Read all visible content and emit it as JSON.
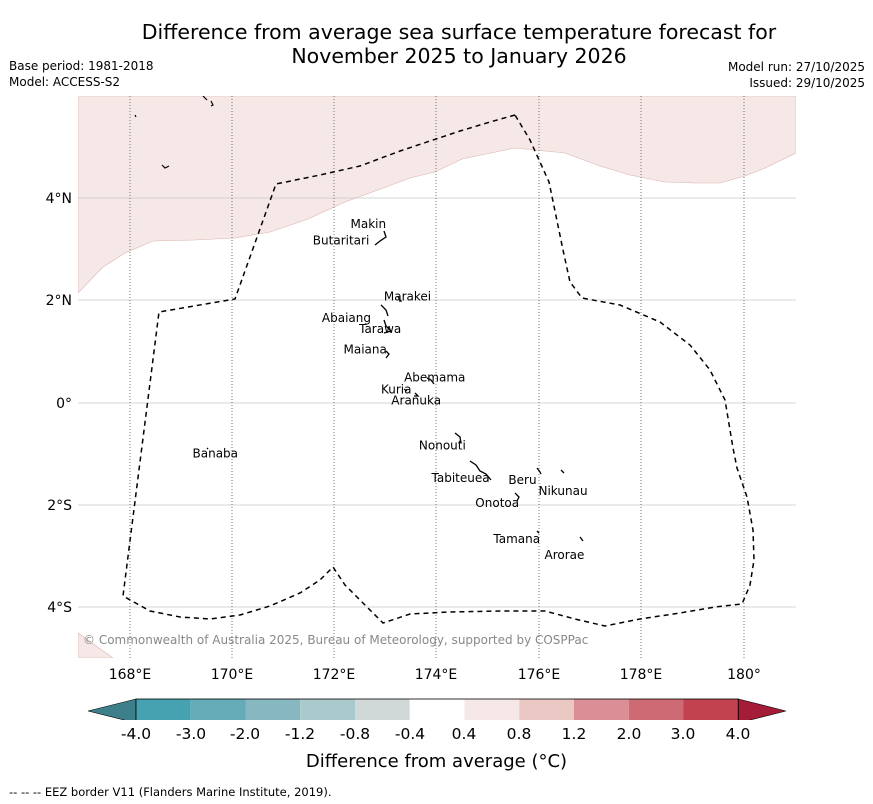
{
  "title": {
    "line1": "Difference from average sea surface temperature forecast for",
    "line2": "November 2025 to January 2026"
  },
  "meta": {
    "base_period": "Base period: 1981-2018",
    "model": "Model: ACCESS-S2",
    "model_run": "Model run: 27/10/2025",
    "issued": "Issued: 29/10/2025"
  },
  "map": {
    "lon_labels": [
      "168°E",
      "170°E",
      "172°E",
      "174°E",
      "176°E",
      "178°E",
      "180°"
    ],
    "lat_labels": [
      "4°N",
      "2°N",
      "0°",
      "2°S",
      "4°S"
    ],
    "copyright": "© Commonwealth of Australia 2025, Bureau of Meteorology, supported by COSPPac",
    "islands": [
      {
        "name": "Makin",
        "lon": 172.98,
        "lat": 3.3
      },
      {
        "name": "Butaritari",
        "lon": 172.85,
        "lat": 3.05
      },
      {
        "name": "Marakei",
        "lon": 173.3,
        "lat": 2.0
      },
      {
        "name": "Abaiang",
        "lon": 172.95,
        "lat": 1.8
      },
      {
        "name": "Tarawa",
        "lon": 173.05,
        "lat": 1.35
      },
      {
        "name": "Maiana",
        "lon": 173.0,
        "lat": 0.95
      },
      {
        "name": "Abemama",
        "lon": 173.85,
        "lat": 0.4
      },
      {
        "name": "Kuria",
        "lon": 173.4,
        "lat": 0.22
      },
      {
        "name": "Aranuka",
        "lon": 173.6,
        "lat": 0.17
      },
      {
        "name": "Nonouti",
        "lon": 174.45,
        "lat": -0.65
      },
      {
        "name": "Banaba",
        "lon": 169.53,
        "lat": -0.87
      },
      {
        "name": "Tabiteuea",
        "lon": 174.95,
        "lat": -1.35
      },
      {
        "name": "Beru",
        "lon": 176.0,
        "lat": -1.35
      },
      {
        "name": "Nikunau",
        "lon": 176.45,
        "lat": -1.35
      },
      {
        "name": "Onotoa",
        "lon": 175.55,
        "lat": -1.85
      },
      {
        "name": "Tamana",
        "lon": 175.98,
        "lat": -2.5
      },
      {
        "name": "Arorae",
        "lon": 176.82,
        "lat": -2.65
      }
    ]
  },
  "colorbar": {
    "title": "Difference from average (°C)",
    "tick_labels": [
      "-4.0",
      "-3.0",
      "-2.0",
      "-1.2",
      "-0.8",
      "-0.4",
      "0.4",
      "0.8",
      "1.2",
      "2.0",
      "3.0",
      "4.0"
    ],
    "colors": [
      "#3d7f8a",
      "#46a2b0",
      "#65acb8",
      "#87b8c2",
      "#a9c9cd",
      "#d1d8d8",
      "#ffffff",
      "#f6e8e6",
      "#ecc8c4",
      "#da8f96",
      "#cd6a74",
      "#c2424f",
      "#a51c39"
    ]
  },
  "footnote": "--  --  -- EEZ border V11 (Flanders Marine Institute, 2019).",
  "colors": {
    "warm_anomaly_fill": "#f6e8e6",
    "eez_border": "#000000",
    "gridline": "#c8c8c8"
  }
}
